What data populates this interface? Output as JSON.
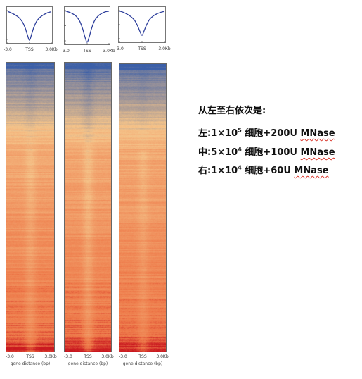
{
  "chart_data": {
    "type": "heatmap",
    "description_text": {
      "title": "从左至右依次是:",
      "conditions": [
        {
          "prefix": "左:",
          "count": "1×10",
          "exp": "5",
          "suffix": " 细胞+200U ",
          "enzyme": "MNase"
        },
        {
          "prefix": "中:",
          "count": "5×10",
          "exp": "4",
          "suffix": " 细胞+100U ",
          "enzyme": "MNase"
        },
        {
          "prefix": "右:",
          "count": "1×10",
          "exp": "4",
          "suffix": " 细胞+60U ",
          "enzyme": "MNase"
        }
      ]
    },
    "x_ticks": [
      "-3.0",
      "TSS",
      "3.0Kb"
    ],
    "xlabel": "gene distance (bp)",
    "colors": {
      "low": "#3b5fa8",
      "mid": "#f5c48a",
      "high": "#c8151e",
      "profile_line": "#2e3f9c"
    },
    "panels": [
      {
        "name": "left",
        "profile": {
          "x": [
            -3.0,
            -2.5,
            -2.0,
            -1.5,
            -1.0,
            -0.6,
            -0.3,
            0.0,
            0.3,
            0.6,
            1.0,
            1.5,
            2.0,
            2.5,
            3.0
          ],
          "y": [
            0.95,
            0.9,
            0.84,
            0.76,
            0.62,
            0.42,
            0.2,
            0.02,
            0.22,
            0.44,
            0.64,
            0.77,
            0.85,
            0.91,
            0.94
          ]
        }
      },
      {
        "name": "middle",
        "profile": {
          "x": [
            -3.0,
            -2.5,
            -2.0,
            -1.5,
            -1.0,
            -0.6,
            -0.3,
            0.0,
            0.3,
            0.6,
            1.0,
            1.5,
            2.0,
            2.5,
            3.0
          ],
          "y": [
            0.97,
            0.93,
            0.88,
            0.8,
            0.64,
            0.4,
            0.16,
            0.0,
            0.18,
            0.42,
            0.66,
            0.81,
            0.89,
            0.94,
            0.96
          ]
        }
      },
      {
        "name": "right",
        "profile": {
          "x": [
            -3.0,
            -2.5,
            -2.0,
            -1.5,
            -1.0,
            -0.6,
            -0.3,
            0.0,
            0.3,
            0.6,
            1.0,
            1.5,
            2.0,
            2.5,
            3.0
          ],
          "y": [
            0.96,
            0.92,
            0.86,
            0.78,
            0.66,
            0.48,
            0.3,
            0.16,
            0.32,
            0.5,
            0.68,
            0.8,
            0.87,
            0.92,
            0.95
          ]
        }
      }
    ]
  }
}
